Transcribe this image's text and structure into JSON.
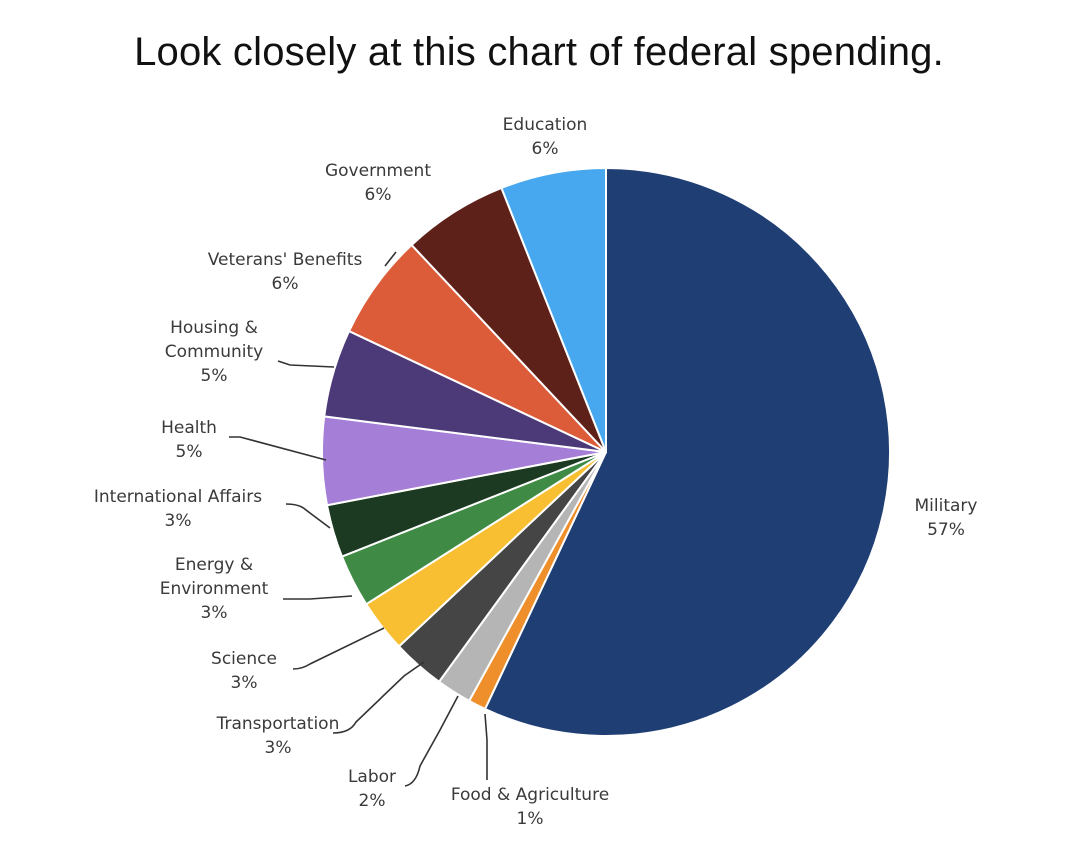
{
  "headline": "Look closely at this chart of federal spending.",
  "chart_data": {
    "type": "pie",
    "title": "",
    "slices": [
      {
        "label": "Military",
        "value": 57,
        "value_label": "57%",
        "color": "#1f3e73"
      },
      {
        "label": "Food & Agriculture",
        "value": 1,
        "value_label": "1%",
        "color": "#ef8f2b"
      },
      {
        "label": "Labor",
        "value": 2,
        "value_label": "2%",
        "color": "#b5b5b5"
      },
      {
        "label": "Transportation",
        "value": 3,
        "value_label": "3%",
        "color": "#454545"
      },
      {
        "label": "Science",
        "value": 3,
        "value_label": "3%",
        "color": "#f8bf33"
      },
      {
        "label": "Energy & Environment",
        "value": 3,
        "value_label": "3%",
        "color": "#3f8a45"
      },
      {
        "label": "International Affairs",
        "value": 3,
        "value_label": "3%",
        "color": "#1c3a22"
      },
      {
        "label": "Health",
        "value": 5,
        "value_label": "5%",
        "color": "#a47ed7"
      },
      {
        "label": "Housing & Community",
        "value": 5,
        "value_label": "5%",
        "color": "#4c3a78"
      },
      {
        "label": "Veterans' Benefits",
        "value": 6,
        "value_label": "6%",
        "color": "#dc5c3a"
      },
      {
        "label": "Government",
        "value": 6,
        "value_label": "6%",
        "color": "#5e2119"
      },
      {
        "label": "Education",
        "value": 6,
        "value_label": "6%",
        "color": "#47a8ef"
      }
    ],
    "label_lines": [
      [
        "Military",
        "57%"
      ],
      [
        "Food & Agriculture",
        "1%"
      ],
      [
        "Labor",
        "2%"
      ],
      [
        "Transportation",
        "3%"
      ],
      [
        "Science",
        "3%"
      ],
      [
        "Energy &",
        "Environment",
        "3%"
      ],
      [
        "International  Affairs",
        "3%"
      ],
      [
        "Health",
        "5%"
      ],
      [
        "Housing &",
        "Community",
        "5%"
      ],
      [
        "Veterans'  Benefits",
        "6%"
      ],
      [
        "Government",
        "6%"
      ],
      [
        "Education",
        "6%"
      ]
    ],
    "start_angle": "12 o'clock",
    "direction": "clockwise",
    "legend": "none"
  }
}
